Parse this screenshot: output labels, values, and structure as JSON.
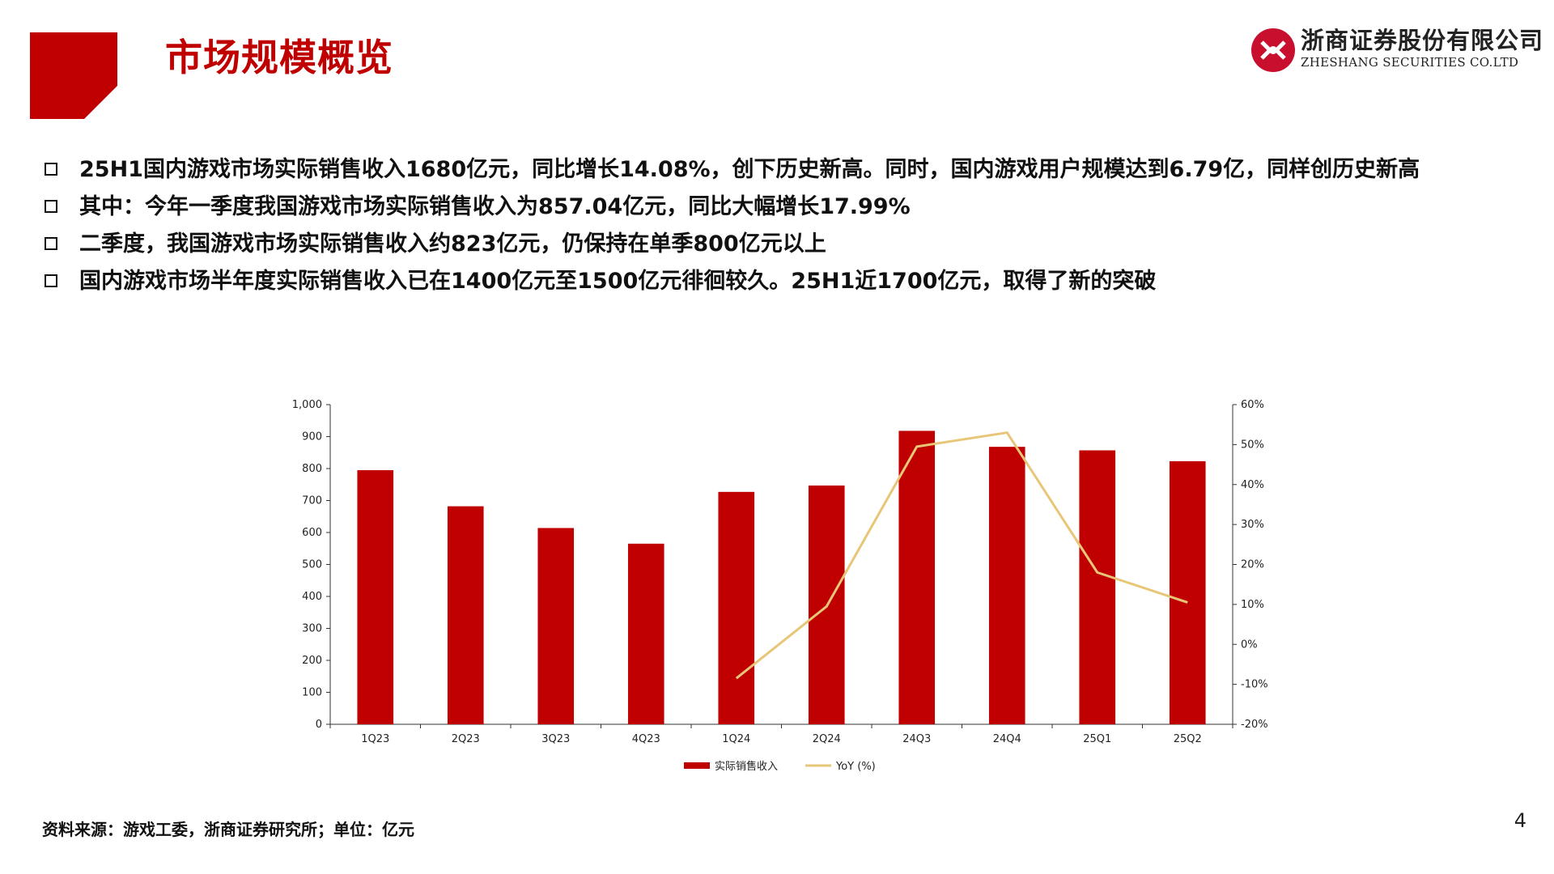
{
  "slide": {
    "title": "市场规模概览",
    "brand_color": "#c00000",
    "logo": {
      "icon": "zheshang-logo-icon",
      "name_cn": "浙商证券股份有限公司",
      "name_en": "ZHESHANG SECURITIES CO.LTD"
    },
    "bullets": [
      "25H1国内游戏市场实际销售收入1680亿元，同比增长14.08%，创下历史新高。同时，国内游戏用户规模达到6.79亿，同样创历史新高",
      "其中：今年一季度我国游戏市场实际销售收入为857.04亿元，同比大幅增长17.99%",
      "二季度，我国游戏市场实际销售收入约823亿元，仍保持在单季800亿元以上",
      "国内游戏市场半年度实际销售收入已在1400亿元至1500亿元徘徊较久。25H1近1700亿元，取得了新的突破"
    ],
    "source": "资料来源：游戏工委，浙商证券研究所；单位：亿元",
    "page_number": "4"
  },
  "chart_data": {
    "type": "bar",
    "categories": [
      "1Q23",
      "2Q23",
      "3Q23",
      "4Q23",
      "1Q24",
      "2Q24",
      "24Q3",
      "24Q4",
      "25Q1",
      "25Q2"
    ],
    "series": [
      {
        "name": "实际销售收入",
        "type": "bar",
        "axis": "left",
        "color": "#c00000",
        "values": [
          795,
          682,
          614,
          565,
          727,
          747,
          918,
          868,
          857,
          823
        ]
      },
      {
        "name": "YoY (%)",
        "type": "line",
        "axis": "right",
        "color": "#e8c678",
        "values": [
          null,
          null,
          null,
          null,
          -8.5,
          9.5,
          49.5,
          53,
          18,
          10.5
        ]
      }
    ],
    "ylim": [
      0,
      1000
    ],
    "yticks": [
      "0",
      "100",
      "200",
      "300",
      "400",
      "500",
      "600",
      "700",
      "800",
      "900",
      "1,000"
    ],
    "y2lim": [
      -20,
      60
    ],
    "y2ticks": [
      "-20%",
      "-10%",
      "0%",
      "10%",
      "20%",
      "30%",
      "40%",
      "50%",
      "60%"
    ],
    "grid": false,
    "legend": "bottom"
  }
}
